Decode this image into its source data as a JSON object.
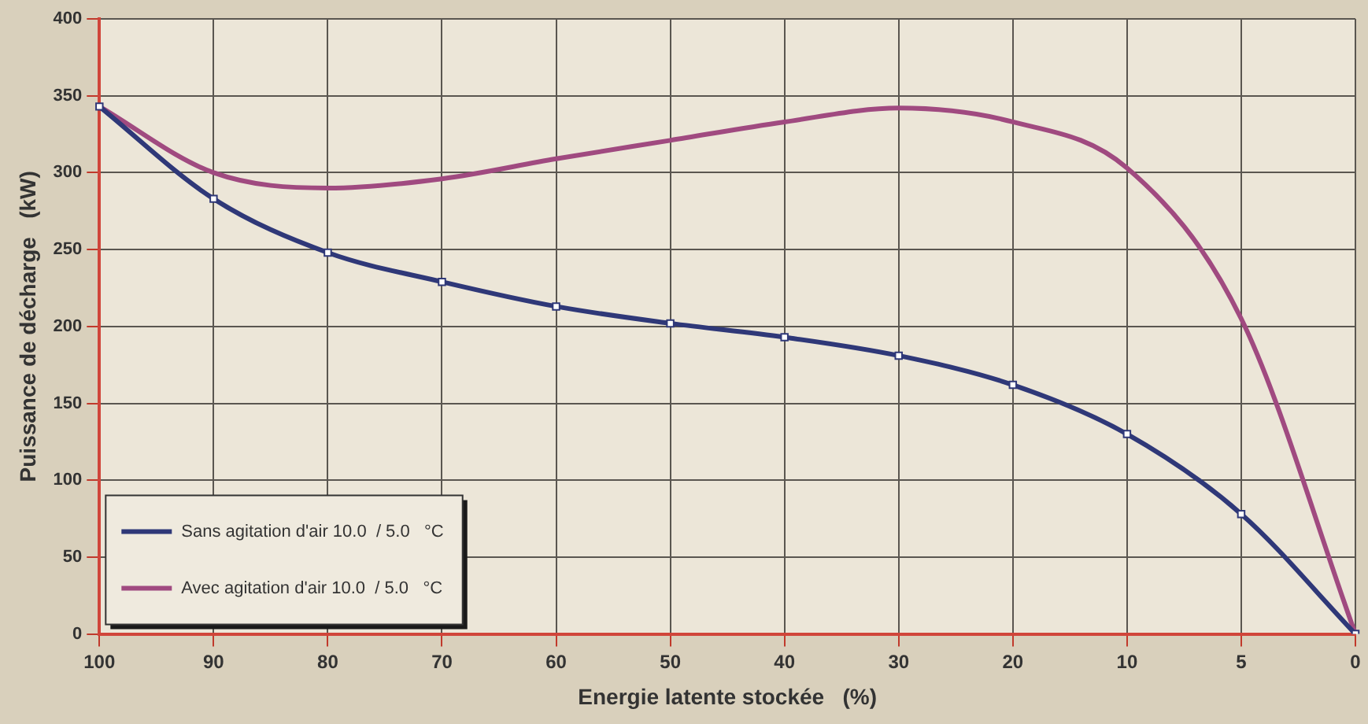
{
  "chart_data": {
    "type": "line",
    "xlabel": "Energie latente stockée   (%)",
    "ylabel": "Puissance de décharge   (kW)",
    "categories": [
      "100",
      "90",
      "80",
      "70",
      "60",
      "50",
      "40",
      "30",
      "20",
      "10",
      "5",
      "0"
    ],
    "series": [
      {
        "name": "Sans agitation d'air 10.0  / 5.0   °C",
        "color": "#2f3878",
        "marker": "square",
        "values": [
          343,
          283,
          248,
          229,
          213,
          202,
          193,
          181,
          162,
          130,
          78,
          0
        ]
      },
      {
        "name": "Avec agitation d'air 10.0  / 5.0   °C",
        "color": "#a04a80",
        "marker": "none",
        "values": [
          343,
          300,
          290,
          296,
          309,
          321,
          333,
          342,
          333,
          303,
          205,
          0
        ]
      }
    ],
    "ylim": [
      0,
      400
    ],
    "yticks": [
      0,
      50,
      100,
      150,
      200,
      250,
      300,
      350,
      400
    ],
    "grid": true,
    "legend": "bottom left",
    "line_style": "solid"
  }
}
